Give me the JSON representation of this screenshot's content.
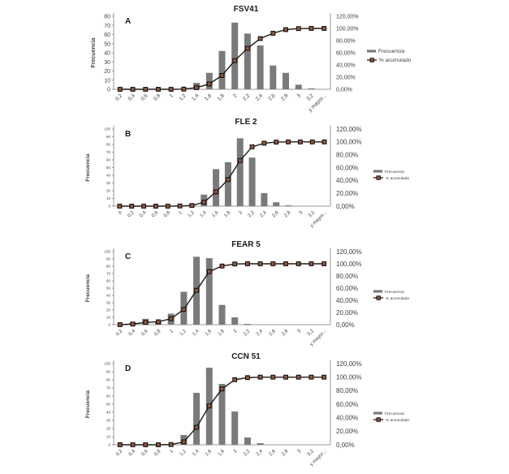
{
  "figure": {
    "background": "#ffffff",
    "legend": {
      "frequency": "Frecuencia",
      "cumulative": "% acumulado"
    },
    "colors": {
      "bar": "#7a7a7a",
      "line": "#1a1a1a",
      "marker_fill": "#8e5a47",
      "marker_stroke": "#1c0f08",
      "axis": "#9a9a9a",
      "tick_text": "#3f3f3f",
      "title_text": "#1a1a1a"
    }
  },
  "chart_data": [
    {
      "type": "bar",
      "subtype": "pareto",
      "panel": "A",
      "title": "FSV41",
      "ylabel": "Frecuencia",
      "legend_position": "right",
      "grid": false,
      "categories": [
        "0,2",
        "0,4",
        "0,6",
        "0,8",
        "1",
        "1,2",
        "1,4",
        "1,6",
        "1,8",
        "2",
        "2,2",
        "2,4",
        "2,6",
        "2,8",
        "3",
        "3,2",
        "y mayor..."
      ],
      "series": [
        {
          "name": "Frecuencia",
          "type": "bar",
          "axis": "left",
          "values": [
            0,
            0,
            0,
            0,
            0,
            1,
            7,
            18,
            42,
            73,
            61,
            48,
            26,
            18,
            5,
            1,
            0
          ]
        },
        {
          "name": "% acumulado",
          "type": "line",
          "axis": "right",
          "unit": "%",
          "values": [
            0,
            0,
            0,
            0,
            0,
            0.3,
            2.7,
            8.7,
            22.7,
            47.0,
            67.3,
            83.3,
            92.0,
            98.0,
            99.7,
            100,
            100
          ]
        }
      ],
      "y_left": {
        "min": 0,
        "max": 80,
        "tick_labels": [
          "0",
          "10",
          "20",
          "30",
          "40",
          "50",
          "60",
          "70",
          "80"
        ]
      },
      "y_right": {
        "min": 0,
        "max": 120,
        "tick_labels": [
          "0,00%",
          "20,00%",
          "40,00%",
          "60,00%",
          "80,00%",
          "100,00%",
          "120,00%"
        ]
      }
    },
    {
      "type": "bar",
      "subtype": "pareto",
      "panel": "B",
      "title": "FLE 2",
      "ylabel": "Frecuencia",
      "legend_position": "right",
      "grid": false,
      "categories": [
        "0",
        "0,2",
        "0,4",
        "0,6",
        "0,8",
        "1",
        "1,2",
        "1,4",
        "1,6",
        "1,8",
        "2",
        "2,2",
        "2,4",
        "2,6",
        "2,8",
        "3",
        "3,2",
        "y mayor..."
      ],
      "series": [
        {
          "name": "Frecuencia",
          "type": "bar",
          "axis": "left",
          "values": [
            0,
            0,
            0,
            0,
            0,
            1,
            2,
            15,
            48,
            57,
            88,
            63,
            17,
            5,
            1,
            0,
            0,
            0
          ]
        },
        {
          "name": "% acumulado",
          "type": "line",
          "axis": "right",
          "unit": "%",
          "values": [
            0,
            0,
            0,
            0,
            0,
            0.3,
            1.0,
            6.1,
            22.2,
            41.4,
            71.0,
            92.3,
            98.0,
            99.7,
            100,
            100,
            100,
            100
          ]
        }
      ],
      "y_left": {
        "min": 0,
        "max": 100,
        "tick_labels": [
          "0",
          "10",
          "20",
          "30",
          "40",
          "50",
          "60",
          "70",
          "80",
          "90",
          "100"
        ]
      },
      "y_right": {
        "min": 0,
        "max": 120,
        "tick_labels": [
          "0,00%",
          "20,00%",
          "40,00%",
          "60,00%",
          "80,00%",
          "100,00%",
          "120,00%"
        ]
      }
    },
    {
      "type": "bar",
      "subtype": "pareto",
      "panel": "C",
      "title": "FEAR 5",
      "ylabel": "Frecuencia",
      "legend_position": "right",
      "grid": false,
      "categories": [
        "0,2",
        "0,4",
        "0,6",
        "0,8",
        "1",
        "1,2",
        "1,4",
        "1,6",
        "1,8",
        "2",
        "2,2",
        "2,4",
        "2,6",
        "2,8",
        "3",
        "3,2",
        "y mayor..."
      ],
      "series": [
        {
          "name": "Frecuencia",
          "type": "bar",
          "axis": "left",
          "values": [
            0,
            3,
            8,
            3,
            15,
            45,
            93,
            91,
            27,
            10,
            1,
            0,
            0,
            0,
            0,
            0,
            0
          ]
        },
        {
          "name": "% acumulado",
          "type": "line",
          "axis": "right",
          "unit": "%",
          "values": [
            0,
            1.0,
            3.7,
            4.7,
            9.8,
            25.0,
            56.4,
            87.2,
            96.3,
            99.7,
            100,
            100,
            100,
            100,
            100,
            100,
            100
          ]
        }
      ],
      "y_left": {
        "min": 0,
        "max": 100,
        "tick_labels": [
          "0",
          "10",
          "20",
          "30",
          "40",
          "50",
          "60",
          "70",
          "80",
          "90",
          "100"
        ]
      },
      "y_right": {
        "min": 0,
        "max": 120,
        "tick_labels": [
          "0,00%",
          "20,00%",
          "40,00%",
          "60,00%",
          "80,00%",
          "100,00%",
          "120,00%"
        ]
      }
    },
    {
      "type": "bar",
      "subtype": "pareto",
      "panel": "D",
      "title": "CCN 51",
      "ylabel": "Frecuencia",
      "legend_position": "right",
      "grid": false,
      "categories": [
        "0,2",
        "0,4",
        "0,6",
        "0,8",
        "1",
        "1,2",
        "1,4",
        "1,6",
        "1,8",
        "2",
        "2,2",
        "2,4",
        "2,6",
        "2,8",
        "3",
        "3,2",
        "y mayor..."
      ],
      "series": [
        {
          "name": "Frecuencia",
          "type": "bar",
          "axis": "left",
          "values": [
            0,
            0,
            0,
            0,
            1,
            12,
            64,
            95,
            75,
            41,
            9,
            2,
            0,
            0,
            0,
            0,
            0
          ]
        },
        {
          "name": "% acumulado",
          "type": "line",
          "axis": "right",
          "unit": "%",
          "values": [
            0,
            0,
            0,
            0,
            0.3,
            4.3,
            25.8,
            57.5,
            82.6,
            96.3,
            99.3,
            100,
            100,
            100,
            100,
            100,
            100
          ]
        }
      ],
      "y_left": {
        "min": 0,
        "max": 100,
        "tick_labels": [
          "0",
          "10",
          "20",
          "30",
          "40",
          "50",
          "60",
          "70",
          "80",
          "90",
          "100"
        ]
      },
      "y_right": {
        "min": 0,
        "max": 120,
        "tick_labels": [
          "0,00%",
          "20,00%",
          "40,00%",
          "60,00%",
          "80,00%",
          "100,00%",
          "120,00%"
        ]
      }
    }
  ]
}
